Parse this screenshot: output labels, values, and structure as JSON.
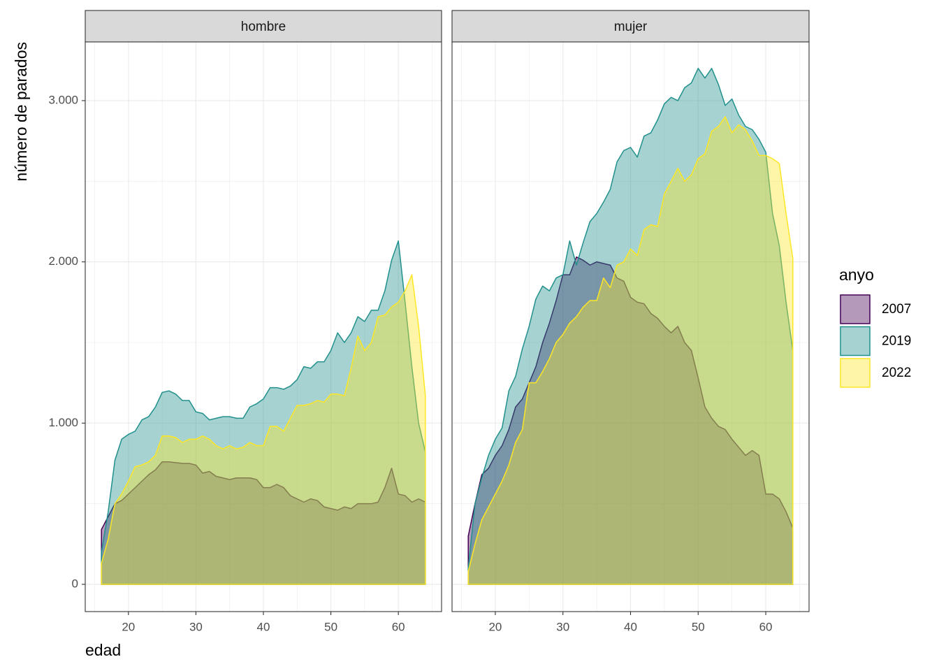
{
  "chart_data": [
    {
      "type": "area",
      "title": "hombre",
      "x_label": "edad",
      "y_label": "número de parados",
      "legend_title": "anyo",
      "x": [
        16,
        17,
        18,
        19,
        20,
        21,
        22,
        23,
        24,
        25,
        26,
        27,
        28,
        29,
        30,
        31,
        32,
        33,
        34,
        35,
        36,
        37,
        38,
        39,
        40,
        41,
        42,
        43,
        44,
        45,
        46,
        47,
        48,
        49,
        50,
        51,
        52,
        53,
        54,
        55,
        56,
        57,
        58,
        59,
        60,
        61,
        62,
        63,
        64
      ],
      "series": [
        {
          "name": "2007",
          "color": "#440154",
          "values": [
            340,
            420,
            500,
            520,
            560,
            600,
            640,
            680,
            710,
            760,
            760,
            755,
            750,
            750,
            740,
            690,
            700,
            670,
            660,
            650,
            660,
            660,
            660,
            650,
            600,
            600,
            620,
            600,
            550,
            530,
            510,
            530,
            520,
            480,
            470,
            460,
            480,
            470,
            500,
            500,
            500,
            510,
            600,
            720,
            560,
            550,
            510,
            530,
            510
          ]
        },
        {
          "name": "2019",
          "color": "#21908C",
          "values": [
            200,
            450,
            770,
            900,
            930,
            950,
            1020,
            1040,
            1100,
            1190,
            1200,
            1180,
            1140,
            1140,
            1070,
            1060,
            1020,
            1030,
            1040,
            1040,
            1030,
            1030,
            1100,
            1120,
            1150,
            1220,
            1220,
            1210,
            1230,
            1270,
            1350,
            1340,
            1380,
            1380,
            1450,
            1560,
            1500,
            1560,
            1660,
            1630,
            1700,
            1700,
            1820,
            2010,
            2130,
            1750,
            1350,
            1000,
            820
          ]
        },
        {
          "name": "2022",
          "color": "#FDE725",
          "values": [
            130,
            280,
            500,
            560,
            640,
            730,
            740,
            760,
            800,
            920,
            920,
            910,
            880,
            900,
            900,
            920,
            900,
            860,
            840,
            860,
            840,
            850,
            880,
            860,
            860,
            980,
            980,
            950,
            1030,
            1110,
            1110,
            1120,
            1140,
            1130,
            1180,
            1180,
            1170,
            1340,
            1540,
            1450,
            1500,
            1660,
            1670,
            1720,
            1750,
            1820,
            1920,
            1600,
            1170
          ]
        }
      ],
      "xlim": [
        13.6,
        66.4
      ],
      "ylim": [
        -169,
        3364
      ],
      "xticks": [
        20,
        30,
        40,
        50,
        60
      ],
      "x_minor_ticks": [
        15,
        25,
        35,
        45,
        55,
        65
      ],
      "yticks": [
        0,
        {
          "value": 1000,
          "label": "1.000"
        },
        {
          "value": 2000,
          "label": "2.000"
        },
        {
          "value": 3000,
          "label": "3.000"
        }
      ],
      "y_minor_ticks": [
        500,
        1500,
        2500
      ],
      "grid": true
    },
    {
      "type": "area",
      "title": "mujer",
      "x": [
        16,
        17,
        18,
        19,
        20,
        21,
        22,
        23,
        24,
        25,
        26,
        27,
        28,
        29,
        30,
        31,
        32,
        33,
        34,
        35,
        36,
        37,
        38,
        39,
        40,
        41,
        42,
        43,
        44,
        45,
        46,
        47,
        48,
        49,
        50,
        51,
        52,
        53,
        54,
        55,
        56,
        57,
        58,
        59,
        60,
        61,
        62,
        63,
        64
      ],
      "series": [
        {
          "name": "2007",
          "color": "#440154",
          "values": [
            300,
            500,
            680,
            720,
            800,
            860,
            960,
            1100,
            1150,
            1250,
            1350,
            1500,
            1620,
            1760,
            1920,
            1920,
            2030,
            2010,
            1980,
            2000,
            1990,
            1980,
            1900,
            1880,
            1780,
            1750,
            1740,
            1680,
            1650,
            1600,
            1560,
            1600,
            1500,
            1450,
            1280,
            1100,
            1030,
            980,
            960,
            900,
            850,
            800,
            830,
            800,
            560,
            560,
            530,
            450,
            350
          ]
        },
        {
          "name": "2019",
          "color": "#21908C",
          "values": [
            100,
            500,
            660,
            800,
            900,
            970,
            1200,
            1290,
            1460,
            1600,
            1770,
            1850,
            1820,
            1900,
            1920,
            2130,
            1980,
            2120,
            2250,
            2300,
            2370,
            2450,
            2620,
            2690,
            2710,
            2650,
            2780,
            2800,
            2880,
            2980,
            3020,
            3000,
            3080,
            3110,
            3200,
            3140,
            3200,
            3100,
            2970,
            3010,
            2910,
            2840,
            2820,
            2760,
            2680,
            2300,
            2100,
            1750,
            1450
          ]
        },
        {
          "name": "2022",
          "color": "#FDE725",
          "values": [
            80,
            250,
            400,
            480,
            560,
            640,
            740,
            880,
            960,
            1250,
            1250,
            1320,
            1400,
            1500,
            1550,
            1620,
            1660,
            1720,
            1760,
            1760,
            1900,
            1840,
            1980,
            2000,
            2080,
            2040,
            2200,
            2230,
            2220,
            2420,
            2500,
            2580,
            2500,
            2540,
            2640,
            2670,
            2810,
            2840,
            2900,
            2800,
            2850,
            2820,
            2750,
            2660,
            2660,
            2640,
            2610,
            2300,
            2020
          ]
        }
      ],
      "xlim": [
        13.6,
        66.4
      ],
      "ylim": [
        -169,
        3364
      ],
      "xticks": [
        20,
        30,
        40,
        50,
        60
      ],
      "x_minor_ticks": [
        15,
        25,
        35,
        45,
        55,
        65
      ],
      "yticks": [
        0,
        {
          "value": 1000,
          "label": "1.000"
        },
        {
          "value": 2000,
          "label": "2.000"
        },
        {
          "value": 3000,
          "label": "3.000"
        }
      ],
      "y_minor_ticks": [
        500,
        1500,
        2500
      ],
      "grid": true
    }
  ]
}
